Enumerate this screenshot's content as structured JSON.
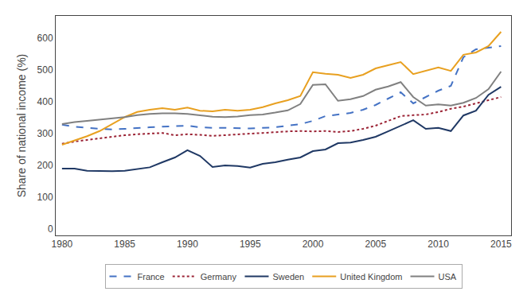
{
  "chart_data": {
    "type": "line",
    "x": [
      1980,
      1981,
      1982,
      1983,
      1984,
      1985,
      1986,
      1987,
      1988,
      1989,
      1990,
      1991,
      1992,
      1993,
      1994,
      1995,
      1996,
      1997,
      1998,
      1999,
      2000,
      2001,
      2002,
      2003,
      2004,
      2005,
      2006,
      2007,
      2008,
      2009,
      2010,
      2011,
      2012,
      2013,
      2014,
      2015
    ],
    "series": [
      {
        "name": "France",
        "color": "#4472c4",
        "line_style": "dashed",
        "values": [
          328,
          322,
          318,
          315,
          313,
          315,
          318,
          320,
          322,
          323,
          325,
          320,
          318,
          318,
          317,
          316,
          318,
          320,
          325,
          330,
          340,
          355,
          360,
          365,
          375,
          390,
          410,
          430,
          395,
          415,
          435,
          450,
          540,
          565,
          570,
          575
        ]
      },
      {
        "name": "Germany",
        "color": "#9b2335",
        "line_style": "dotted",
        "values": [
          268,
          275,
          280,
          285,
          290,
          295,
          298,
          300,
          302,
          295,
          298,
          296,
          293,
          295,
          298,
          300,
          302,
          305,
          307,
          308,
          307,
          308,
          305,
          308,
          315,
          325,
          340,
          355,
          358,
          360,
          368,
          378,
          385,
          395,
          405,
          415
        ]
      },
      {
        "name": "Sweden",
        "color": "#1f3864",
        "line_style": "solid",
        "values": [
          190,
          190,
          183,
          182,
          182,
          183,
          188,
          194,
          210,
          225,
          248,
          230,
          195,
          200,
          198,
          193,
          205,
          210,
          218,
          225,
          245,
          250,
          270,
          272,
          280,
          290,
          307,
          325,
          342,
          315,
          318,
          308,
          357,
          372,
          422,
          447
        ]
      },
      {
        "name": "United Kingdom",
        "color": "#e8a020",
        "line_style": "solid",
        "values": [
          265,
          278,
          292,
          308,
          330,
          352,
          368,
          375,
          380,
          375,
          382,
          372,
          370,
          375,
          372,
          375,
          383,
          395,
          405,
          418,
          493,
          488,
          485,
          475,
          485,
          505,
          515,
          525,
          487,
          497,
          508,
          497,
          548,
          555,
          575,
          620
        ]
      },
      {
        "name": "USA",
        "color": "#808080",
        "line_style": "solid",
        "values": [
          330,
          336,
          340,
          344,
          348,
          352,
          358,
          362,
          364,
          364,
          362,
          358,
          353,
          352,
          354,
          358,
          360,
          366,
          373,
          393,
          453,
          455,
          403,
          408,
          418,
          438,
          448,
          462,
          415,
          388,
          392,
          388,
          397,
          412,
          440,
          495
        ]
      }
    ],
    "ylabel": "Share of national income (%)",
    "xlim": [
      1979.5,
      2015.8
    ],
    "xticks": [
      1980,
      1985,
      1990,
      1995,
      2000,
      2005,
      2010,
      2015
    ],
    "ylim": [
      -20,
      670
    ],
    "yticks": [
      0,
      100,
      200,
      300,
      400,
      500,
      600
    ],
    "grid": false,
    "legend": "bottom"
  }
}
